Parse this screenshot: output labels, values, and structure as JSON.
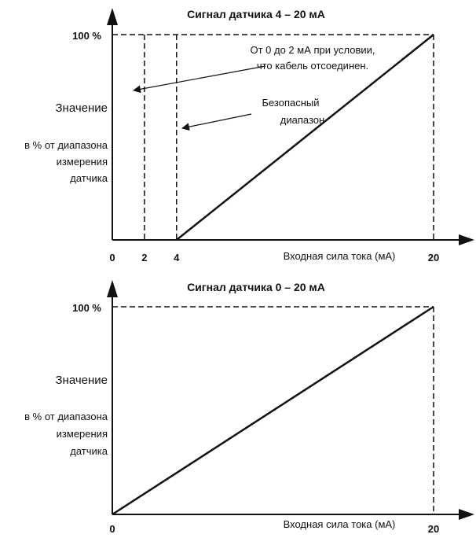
{
  "colors": {
    "ink": "#111111",
    "background": "#ffffff"
  },
  "chart_data": [
    {
      "type": "line",
      "title": "Сигнал датчика 4 – 20 мА",
      "xlabel": "Входная сила тока (мА)",
      "ylabel": "Значение",
      "ylabel_sub": [
        "в % от диапазона",
        "измерения",
        "датчика"
      ],
      "x_ticks": [
        "0",
        "2",
        "4",
        "20"
      ],
      "y_tick": "100 %",
      "xlim": [
        0,
        20
      ],
      "ylim": [
        0,
        100
      ],
      "series": [
        {
          "x": [
            4,
            20
          ],
          "y": [
            0,
            100
          ]
        }
      ],
      "dashed_verticals_x": [
        2,
        4,
        20
      ],
      "dashed_top_y": 100,
      "annotations": [
        {
          "lines": [
            "От 0 до 2 мА при условии,",
            "что кабель отсоединен."
          ]
        },
        {
          "lines": [
            "Безопасный",
            "диапазон"
          ]
        }
      ],
      "grid": false
    },
    {
      "type": "line",
      "title": "Сигнал датчика 0 – 20 мА",
      "xlabel": "Входная сила тока (мА)",
      "ylabel": "Значение",
      "ylabel_sub": [
        "в % от диапазона",
        "измерения",
        "датчика"
      ],
      "x_ticks": [
        "0",
        "20"
      ],
      "y_tick": "100 %",
      "xlim": [
        0,
        20
      ],
      "ylim": [
        0,
        100
      ],
      "series": [
        {
          "x": [
            0,
            20
          ],
          "y": [
            0,
            100
          ]
        }
      ],
      "dashed_verticals_x": [
        20
      ],
      "dashed_top_y": 100,
      "grid": false
    }
  ]
}
